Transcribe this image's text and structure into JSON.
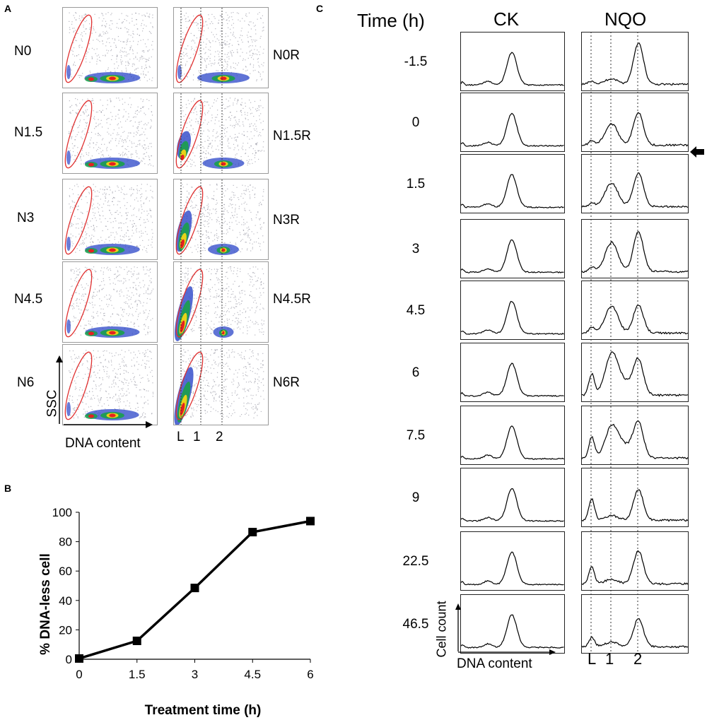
{
  "panels": {
    "a": "A",
    "b": "B",
    "c": "C"
  },
  "panel_a": {
    "left_labels": [
      "N0",
      "N1.5",
      "N3",
      "N4.5",
      "N6"
    ],
    "right_labels": [
      "N0R",
      "N1.5R",
      "N3R",
      "N4.5R",
      "N6R"
    ],
    "y_axis": "SSC",
    "x_axis": "DNA content",
    "marker_labels": [
      "L",
      "1",
      "2"
    ]
  },
  "chart_data": {
    "type": "line",
    "title": "",
    "xlabel": "Treatment time (h)",
    "ylabel": "% DNA-less cell",
    "x": [
      0,
      1.5,
      3,
      4.5,
      6
    ],
    "x_ticks": [
      "0",
      "1.5",
      "3",
      "4.5",
      "6"
    ],
    "y_ticks": [
      "0",
      "20",
      "40",
      "60",
      "80",
      "100"
    ],
    "series": [
      {
        "name": "DNA-less cell",
        "values": [
          0.5,
          12.5,
          48.5,
          86.5,
          94
        ]
      }
    ],
    "xlim": [
      0,
      6
    ],
    "ylim": [
      0,
      100
    ],
    "grid": false
  },
  "panel_c": {
    "time_header": "Time (h)",
    "col_ck": "CK",
    "col_nqo": "NQO",
    "times": [
      "-1.5",
      "0",
      "1.5",
      "3",
      "4.5",
      "6",
      "7.5",
      "9",
      "22.5",
      "46.5"
    ],
    "y_axis": "Cell count",
    "x_axis": "DNA content",
    "marker_labels": [
      "L",
      "1",
      "2"
    ],
    "arrow_row": "0"
  }
}
